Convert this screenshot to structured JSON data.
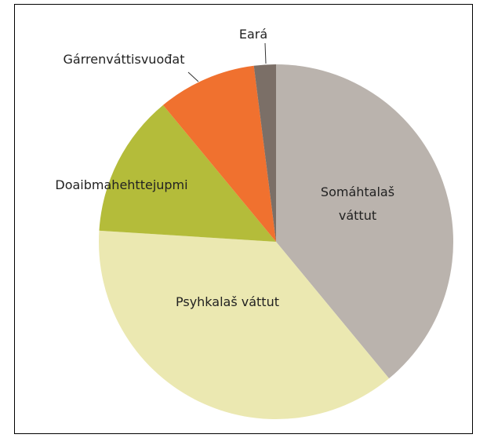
{
  "chart_data": {
    "type": "pie",
    "categories": [
      "Somáhtalaš váttut",
      "Psyhkalaš váttut",
      "Doaibmahehttejupmi",
      "Gárrenváttisvuođat",
      "Eará"
    ],
    "values": [
      39,
      37,
      13,
      9,
      2
    ],
    "colors": [
      "#bab3ad",
      "#ebe8b1",
      "#b4bc3a",
      "#f0712f",
      "#7b6f67"
    ]
  }
}
